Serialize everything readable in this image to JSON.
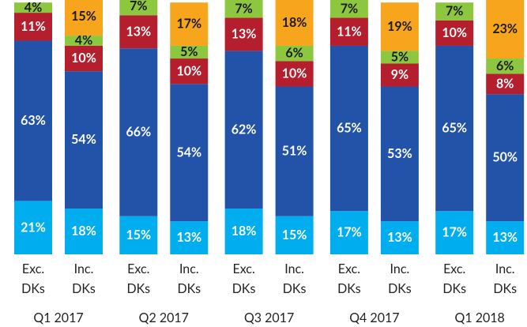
{
  "chart_data": {
    "type": "stacked_bar",
    "groups": [
      "Q1 2017",
      "Q2 2017",
      "Q3 2017",
      "Q4 2017",
      "Q1 2018"
    ],
    "categories": [
      [
        "Exc.",
        "DKs"
      ],
      [
        "Inc.",
        "DKs"
      ],
      [
        "Exc.",
        "DKs"
      ],
      [
        "Inc.",
        "DKs"
      ],
      [
        "Exc.",
        "DKs"
      ],
      [
        "Inc.",
        "DKs"
      ],
      [
        "Exc.",
        "DKs"
      ],
      [
        "Inc.",
        "DKs"
      ],
      [
        "Exc.",
        "DKs"
      ],
      [
        "Inc.",
        "DKs"
      ]
    ],
    "ylim": [
      0,
      100
    ],
    "series": [
      {
        "color": "#00aeef",
        "label_color": "#ffffff",
        "values": [
          21,
          18,
          15,
          13,
          18,
          15,
          17,
          13,
          17,
          13
        ],
        "value_labels": [
          "21%",
          "18%",
          "15%",
          "13%",
          "18%",
          "15%",
          "17%",
          "13%",
          "17%",
          "13%"
        ]
      },
      {
        "color": "#2353a8",
        "label_color": "#ffffff",
        "values": [
          63,
          54,
          66,
          54,
          62,
          51,
          65,
          53,
          65,
          50
        ],
        "value_labels": [
          "63%",
          "54%",
          "66%",
          "54%",
          "62%",
          "51%",
          "65%",
          "53%",
          "65%",
          "50%"
        ]
      },
      {
        "color": "#b41e2d",
        "label_color": "#ffffff",
        "values": [
          11,
          10,
          13,
          10,
          13,
          10,
          11,
          9,
          10,
          8
        ],
        "value_labels": [
          "11%",
          "10%",
          "13%",
          "10%",
          "13%",
          "10%",
          "11%",
          "9%",
          "10%",
          "8%"
        ]
      },
      {
        "color": "#8dc63f",
        "label_color": "#1a1a1a",
        "values": [
          4,
          4,
          7,
          5,
          7,
          6,
          7,
          5,
          7,
          6
        ],
        "value_labels": [
          "4%",
          "4%",
          "7%",
          "5%",
          "7%",
          "6%",
          "7%",
          "5%",
          "7%",
          "6%"
        ]
      },
      {
        "color": "#f7a51c",
        "label_color": "#1a1a1a",
        "values": [
          null,
          15,
          null,
          17,
          null,
          18,
          null,
          19,
          null,
          23
        ],
        "value_labels": [
          null,
          "15%",
          null,
          "17%",
          null,
          "18%",
          null,
          "19%",
          null,
          "23%"
        ]
      }
    ]
  }
}
